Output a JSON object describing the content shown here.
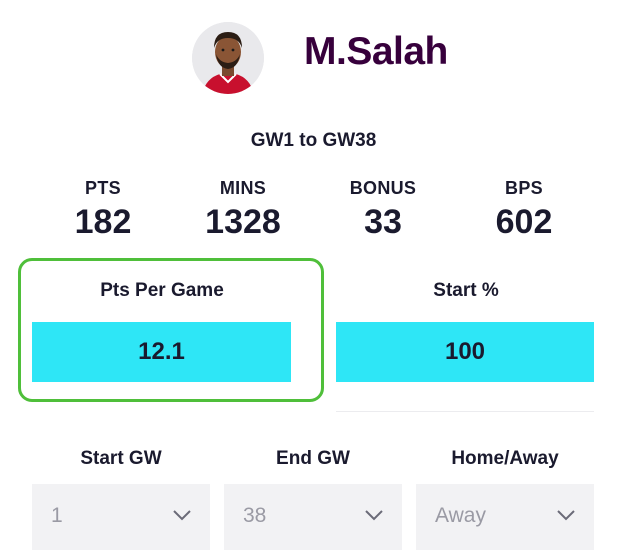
{
  "player": {
    "name": "M.Salah",
    "range": "GW1 to GW38"
  },
  "stats": [
    {
      "label": "PTS",
      "value": "182"
    },
    {
      "label": "MINS",
      "value": "1328"
    },
    {
      "label": "BONUS",
      "value": "33"
    },
    {
      "label": "BPS",
      "value": "602"
    }
  ],
  "metrics": [
    {
      "label": "Pts Per Game",
      "value": "12.1"
    },
    {
      "label": "Start %",
      "value": "100"
    }
  ],
  "filters": [
    {
      "label": "Start GW",
      "value": "1"
    },
    {
      "label": "End GW",
      "value": "38"
    },
    {
      "label": "Home/Away",
      "value": "Away"
    }
  ],
  "colors": {
    "accent_bar": "#2ee6f6",
    "highlight_border": "#4fbf3a",
    "name_color": "#37003c"
  },
  "icons": {
    "avatar": "player-avatar-icon",
    "chevron": "chevron-down-icon"
  }
}
